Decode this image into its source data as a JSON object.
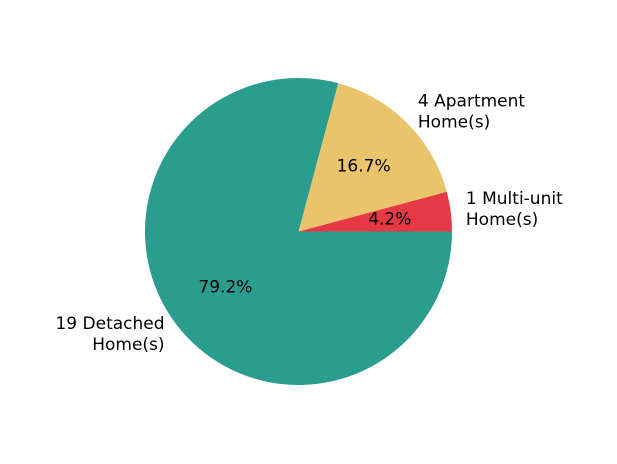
{
  "chart_data": {
    "type": "pie",
    "title": "",
    "slices": [
      {
        "label_lines": [
          "1 Multi-unit",
          "Home(s)"
        ],
        "value": 1,
        "percent_label": "4.2%",
        "color": "#e63946"
      },
      {
        "label_lines": [
          "4 Apartment",
          "Home(s)"
        ],
        "value": 4,
        "percent_label": "16.7%",
        "color": "#e9c46a"
      },
      {
        "label_lines": [
          "19 Detached",
          "Home(s)"
        ],
        "value": 19,
        "percent_label": "79.2%",
        "color": "#2a9d8f"
      }
    ],
    "start_angle_deg": 0,
    "direction": "counterclockwise"
  }
}
